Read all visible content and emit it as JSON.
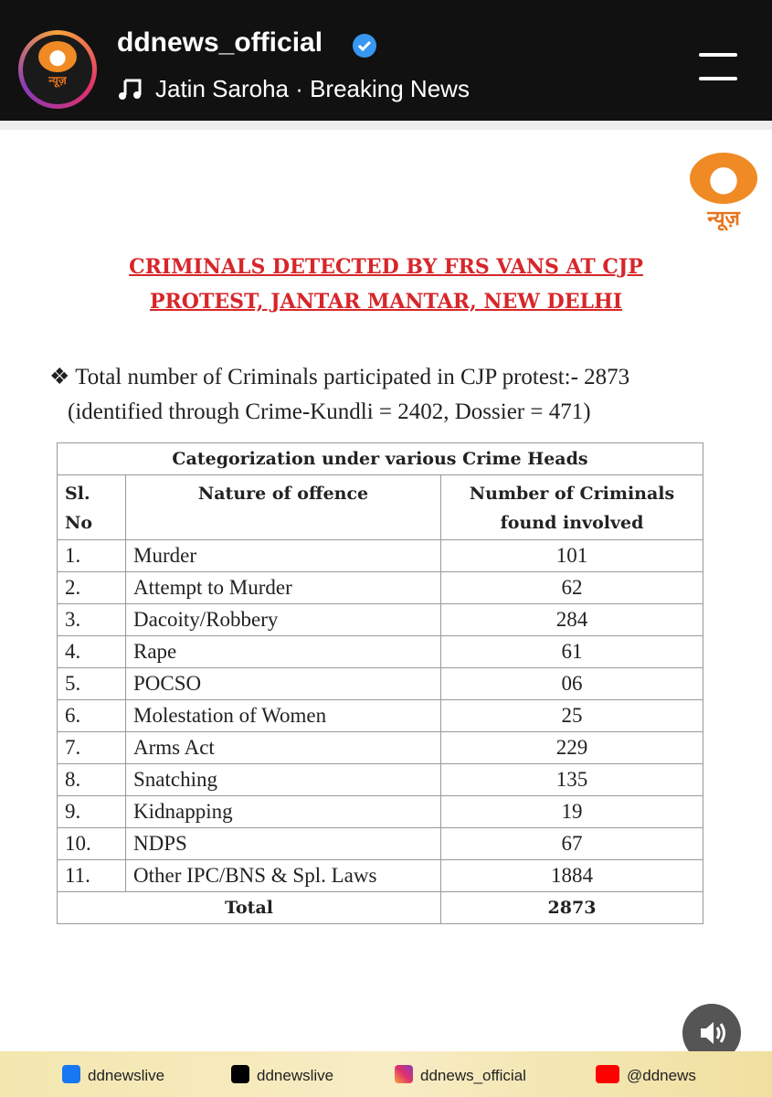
{
  "header": {
    "account": "ddnews_official",
    "audio": "Jatin Saroha · Breaking News"
  },
  "logo_text": "न्यूज़",
  "document": {
    "title_lines": [
      "CRIMINALS DETECTED BY FRS VANS AT CJP",
      "PROTEST, JANTAR MANTAR, NEW DELHI"
    ],
    "summary_lines": [
      "Total number of Criminals participated in CJP protest:- 2873",
      "(identified through Crime-Kundli = 2402, Dossier = 471)"
    ]
  },
  "table": {
    "caption": "Categorization under various Crime Heads",
    "headers": [
      [
        "Sl.",
        "No"
      ],
      [
        "Nature of offence"
      ],
      [
        "Number of Criminals",
        "found involved"
      ]
    ],
    "rows": [
      [
        "1.",
        "Murder",
        "101"
      ],
      [
        "2.",
        "Attempt to Murder",
        "62"
      ],
      [
        "3.",
        "Dacoity/Robbery",
        "284"
      ],
      [
        "4.",
        "Rape",
        "61"
      ],
      [
        "5.",
        "POCSO",
        "06"
      ],
      [
        "6.",
        "Molestation of Women",
        "25"
      ],
      [
        "7.",
        "Arms Act",
        "229"
      ],
      [
        "8.",
        "Snatching",
        "135"
      ],
      [
        "9.",
        "Kidnapping",
        "19"
      ],
      [
        "10.",
        "NDPS",
        "67"
      ],
      [
        "11.",
        "Other IPC/BNS & Spl. Laws",
        "1884"
      ]
    ],
    "total": [
      "Total",
      "2873"
    ]
  },
  "footer": {
    "facebook": "ddnewslive",
    "x": "ddnewslive",
    "instagram": "ddnews_official",
    "youtube": "@ddnews"
  }
}
